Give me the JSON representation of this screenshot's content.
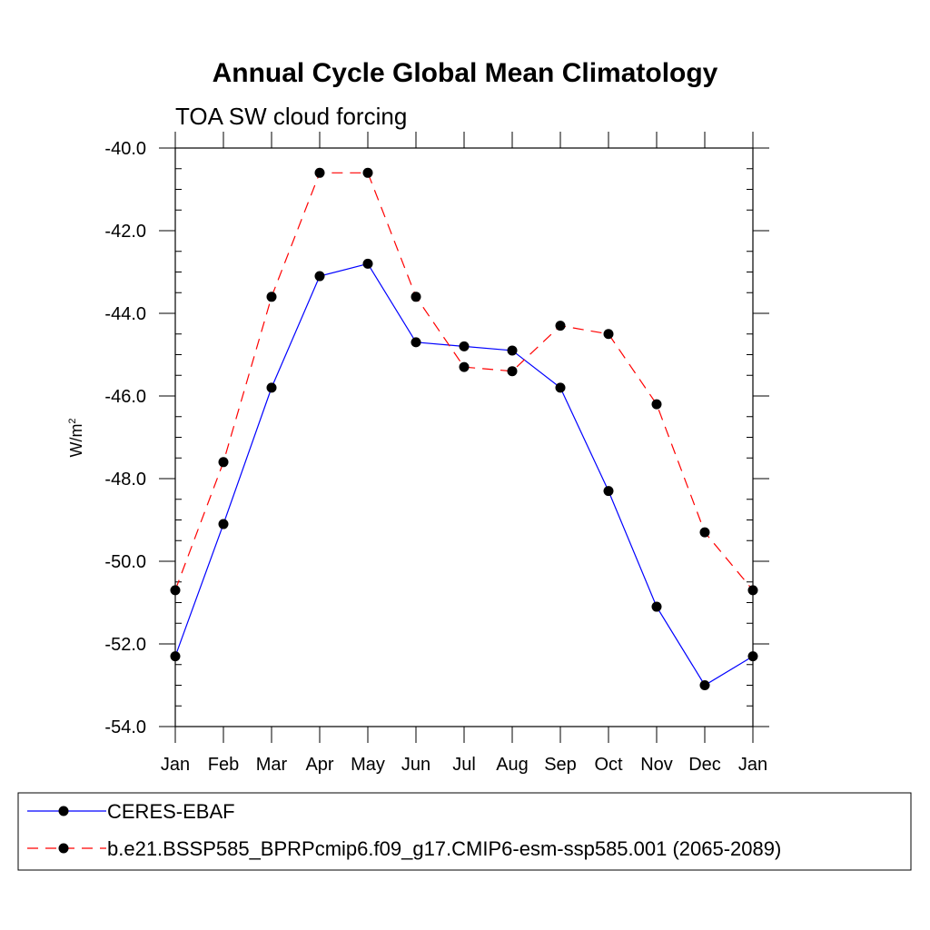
{
  "chart_data": {
    "type": "line",
    "title": "Annual Cycle Global Mean Climatology",
    "subtitle": "TOA SW cloud forcing",
    "ylabel": "W/m",
    "ylabel_sup": "2",
    "xlabel": "",
    "ylim": [
      -54.0,
      -40.0
    ],
    "yticks": [
      "-40.0",
      "-42.0",
      "-44.0",
      "-46.0",
      "-48.0",
      "-50.0",
      "-52.0",
      "-54.0"
    ],
    "ytick_values": [
      -40,
      -42,
      -44,
      -46,
      -48,
      -50,
      -52,
      -54
    ],
    "categories": [
      "Jan",
      "Feb",
      "Mar",
      "Apr",
      "May",
      "Jun",
      "Jul",
      "Aug",
      "Sep",
      "Oct",
      "Nov",
      "Dec",
      "Jan"
    ],
    "grid": false,
    "legend_position": "bottom",
    "series": [
      {
        "name": "CERES-EBAF",
        "color": "#0000ff",
        "dash": "solid",
        "values": [
          -52.3,
          -49.1,
          -45.8,
          -43.1,
          -42.8,
          -44.7,
          -44.8,
          -44.9,
          -45.8,
          -48.3,
          -51.1,
          -53.0,
          -52.3
        ]
      },
      {
        "name": "b.e21.BSSP585_BPRPcmip6.f09_g17.CMIP6-esm-ssp585.001 (2065-2089)",
        "color": "#ff0000",
        "dash": "dashed",
        "values": [
          -50.7,
          -47.6,
          -43.6,
          -40.6,
          -40.6,
          -43.6,
          -45.3,
          -45.4,
          -44.3,
          -44.5,
          -46.2,
          -49.3,
          -50.7
        ]
      }
    ]
  }
}
